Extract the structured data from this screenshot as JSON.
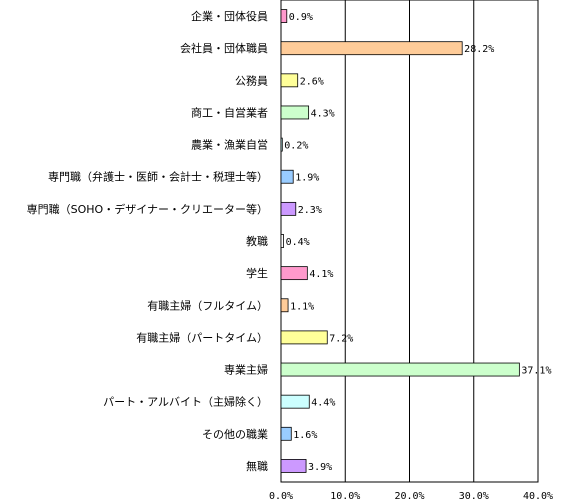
{
  "chart_data": {
    "type": "bar",
    "orientation": "horizontal",
    "categories": [
      "企業・団体役員",
      "会社員・団体職員",
      "公務員",
      "商工・自営業者",
      "農業・漁業自営",
      "専門職（弁護士・医師・会計士・税理士等）",
      "専門職（SOHO・デザイナー・クリエーター等）",
      "教職",
      "学生",
      "有職主婦（フルタイム）",
      "有職主婦（パートタイム）",
      "専業主婦",
      "パート・アルバイト（主婦除く）",
      "その他の職業",
      "無職"
    ],
    "values": [
      0.9,
      28.2,
      2.6,
      4.3,
      0.2,
      1.9,
      2.3,
      0.4,
      4.1,
      1.1,
      7.2,
      37.1,
      4.4,
      1.6,
      3.9
    ],
    "value_labels": [
      "0.9%",
      "28.2%",
      "2.6%",
      "4.3%",
      "0.2%",
      "1.9%",
      "2.3%",
      "0.4%",
      "4.1%",
      "1.1%",
      "7.2%",
      "37.1%",
      "4.4%",
      "1.6%",
      "3.9%"
    ],
    "colors": [
      "#ff99cc",
      "#ffcc99",
      "#ffff99",
      "#ccffcc",
      "#ccffff",
      "#99ccff",
      "#cc99ff",
      "#ffffff",
      "#ff99cc",
      "#ffcc99",
      "#ffff99",
      "#ccffcc",
      "#ccffff",
      "#99ccff",
      "#cc99ff"
    ],
    "xlim": [
      0,
      40
    ],
    "xticks": [
      0,
      10,
      20,
      30,
      40
    ],
    "xtick_labels": [
      "0.0%",
      "10.0%",
      "20.0%",
      "30.0%",
      "40.0%"
    ],
    "grid": true,
    "title": "",
    "xlabel": "",
    "ylabel": ""
  }
}
